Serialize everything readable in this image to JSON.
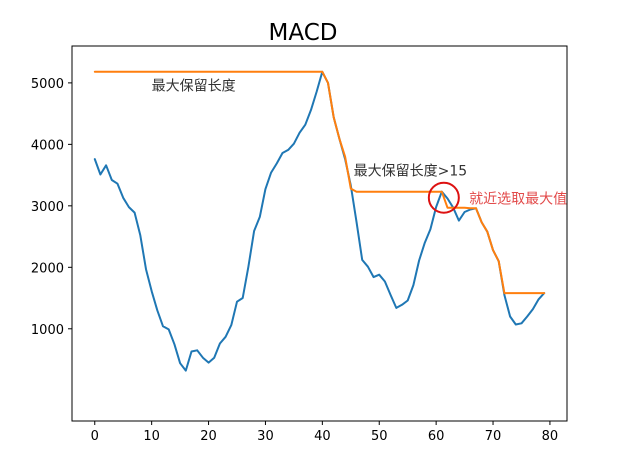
{
  "chart_data": {
    "type": "line",
    "title": "MACD",
    "xlabel": "",
    "ylabel": "",
    "xlim": [
      -4,
      83
    ],
    "ylim": [
      -500,
      5600
    ],
    "xticks": [
      0,
      10,
      20,
      30,
      40,
      50,
      60,
      70,
      80
    ],
    "yticks": [
      1000,
      2000,
      3000,
      4000,
      5000
    ],
    "grid": false,
    "series": [
      {
        "color": "#1f77b4",
        "x": [
          0,
          1,
          2,
          3,
          4,
          5,
          6,
          7,
          8,
          9,
          10,
          11,
          12,
          13,
          14,
          15,
          16,
          17,
          18,
          19,
          20,
          21,
          22,
          23,
          24,
          25,
          26,
          27,
          28,
          29,
          30,
          31,
          32,
          33,
          34,
          35,
          36,
          37,
          38,
          39,
          40,
          41,
          42,
          43,
          44,
          45,
          46,
          47,
          48,
          49,
          50,
          51,
          52,
          53,
          54,
          55,
          56,
          57,
          58,
          59,
          60,
          61,
          62,
          63,
          64,
          65,
          66,
          67,
          68,
          69,
          70,
          71,
          72,
          73,
          74,
          75,
          76,
          77,
          78,
          79
        ],
        "y": [
          3760,
          3510,
          3660,
          3420,
          3360,
          3130,
          2980,
          2890,
          2520,
          1970,
          1610,
          1300,
          1040,
          990,
          750,
          440,
          320,
          630,
          650,
          530,
          450,
          530,
          760,
          870,
          1060,
          1440,
          1500,
          2010,
          2590,
          2820,
          3270,
          3540,
          3690,
          3860,
          3910,
          4010,
          4190,
          4320,
          4560,
          4860,
          5180,
          5000,
          4440,
          4090,
          3760,
          3330,
          2740,
          2120,
          2010,
          1840,
          1880,
          1770,
          1550,
          1340,
          1390,
          1460,
          1710,
          2110,
          2400,
          2620,
          2980,
          3230,
          3120,
          2970,
          2760,
          2900,
          2940,
          2960,
          2730,
          2580,
          2280,
          2100,
          1550,
          1200,
          1070,
          1090,
          1200,
          1320,
          1480,
          1580
        ]
      },
      {
        "color": "#ff7f0e",
        "x": [
          0,
          40,
          41,
          42,
          43,
          44,
          45,
          46,
          47,
          48,
          49,
          50,
          51,
          52,
          53,
          54,
          55,
          56,
          57,
          58,
          59,
          60,
          61,
          62,
          63,
          64,
          65,
          66,
          67,
          68,
          69,
          70,
          71,
          72,
          73,
          74,
          75,
          76,
          77,
          78,
          79
        ],
        "y": [
          5180,
          5180,
          5000,
          4440,
          4090,
          3800,
          3280,
          3230,
          3230,
          3230,
          3230,
          3230,
          3230,
          3230,
          3230,
          3230,
          3230,
          3230,
          3230,
          3230,
          3230,
          3230,
          3230,
          2970,
          2970,
          2970,
          2970,
          2960,
          2960,
          2730,
          2580,
          2280,
          2100,
          1580,
          1580,
          1580,
          1580,
          1580,
          1580,
          1580,
          1580
        ]
      }
    ],
    "annotations": [
      {
        "text": "最大保留长度",
        "x": 10,
        "y": 4880,
        "color": "#333333"
      },
      {
        "text": "最大保留长度>15",
        "x": 45.5,
        "y": 3490,
        "color": "#333333"
      },
      {
        "text": "就近选取最大值",
        "x": 65.8,
        "y": 3040,
        "color": "#e24a4a"
      }
    ],
    "highlight_circle": {
      "x": 61,
      "y": 3230,
      "color": "#dd1111"
    }
  }
}
